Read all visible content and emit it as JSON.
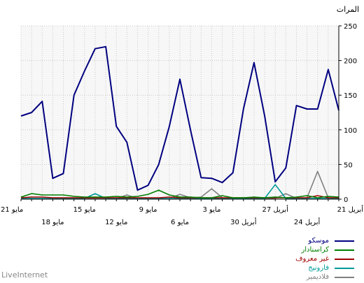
{
  "branding": "LiveInternet",
  "chart_data": {
    "type": "line",
    "ylabel": "المرات",
    "ylim": [
      0,
      250
    ],
    "yticks": [
      0,
      50,
      100,
      150,
      200,
      250
    ],
    "grid": true,
    "legend_position": "bottom-right",
    "x": [
      "21 مايو",
      "20 مايو",
      "19 مايو",
      "18 مايو",
      "17 مايو",
      "16 مايو",
      "15 مايو",
      "14 مايو",
      "13 مايو",
      "12 مايو",
      "11 مايو",
      "10 مايو",
      "9 مايو",
      "8 مايو",
      "7 مايو",
      "6 مايو",
      "5 مايو",
      "4 مايو",
      "3 مايو",
      "2 مايو",
      "1 مايو",
      "30 أبريل",
      "29 أبريل",
      "28 أبريل",
      "27 أبريل",
      "26 أبريل",
      "25 أبريل",
      "24 أبريل",
      "23 أبريل",
      "22 أبريل",
      "21 أبريل"
    ],
    "xtick_labels": [
      {
        "index": 0,
        "text": "21 مايو",
        "row": 1
      },
      {
        "index": 3,
        "text": "18 مايو",
        "row": 2
      },
      {
        "index": 6,
        "text": "15 مايو",
        "row": 1
      },
      {
        "index": 9,
        "text": "12 مايو",
        "row": 2
      },
      {
        "index": 12,
        "text": "9 مايو",
        "row": 1
      },
      {
        "index": 15,
        "text": "6 مايو",
        "row": 2
      },
      {
        "index": 18,
        "text": "3 مايو",
        "row": 1
      },
      {
        "index": 21,
        "text": "30 أبريل",
        "row": 2
      },
      {
        "index": 24,
        "text": "27 أبريل",
        "row": 1
      },
      {
        "index": 27,
        "text": "24 أبريل",
        "row": 2
      },
      {
        "index": 30,
        "text": "21 أبريل",
        "row": 1
      }
    ],
    "series": [
      {
        "name": "موسكو",
        "color": "#000080",
        "values": [
          120,
          125,
          141,
          30,
          37,
          150,
          185,
          217,
          220,
          105,
          82,
          13,
          20,
          50,
          105,
          173,
          100,
          31,
          30,
          24,
          38,
          130,
          197,
          120,
          25,
          45,
          135,
          130,
          130,
          187,
          128
        ]
      },
      {
        "name": "كراسنادار",
        "color": "#008000",
        "values": [
          3,
          8,
          6,
          6,
          6,
          4,
          3,
          3,
          3,
          4,
          3,
          4,
          7,
          13,
          6,
          3,
          3,
          2,
          2,
          5,
          2,
          2,
          3,
          2,
          3,
          2,
          3,
          5,
          2,
          4,
          3
        ]
      },
      {
        "name": "غير معروف",
        "color": "#a00000",
        "values": [
          2,
          3,
          3,
          2,
          2,
          2,
          2,
          2,
          2,
          2,
          2,
          2,
          2,
          2,
          3,
          2,
          2,
          2,
          2,
          2,
          2,
          2,
          2,
          2,
          2,
          2,
          2,
          2,
          5,
          2,
          2
        ]
      },
      {
        "name": "فارونيج",
        "color": "#009999",
        "values": [
          1,
          1,
          1,
          1,
          1,
          1,
          1,
          8,
          1,
          1,
          1,
          1,
          1,
          1,
          1,
          1,
          1,
          1,
          1,
          1,
          1,
          1,
          1,
          1,
          21,
          1,
          1,
          1,
          1,
          1,
          1
        ]
      },
      {
        "name": "فلاديمير",
        "color": "#808080",
        "values": [
          1,
          1,
          1,
          1,
          1,
          1,
          1,
          1,
          1,
          1,
          6,
          1,
          1,
          1,
          1,
          7,
          2,
          3,
          15,
          2,
          1,
          1,
          1,
          1,
          1,
          8,
          1,
          2,
          40,
          2,
          1
        ]
      }
    ]
  }
}
